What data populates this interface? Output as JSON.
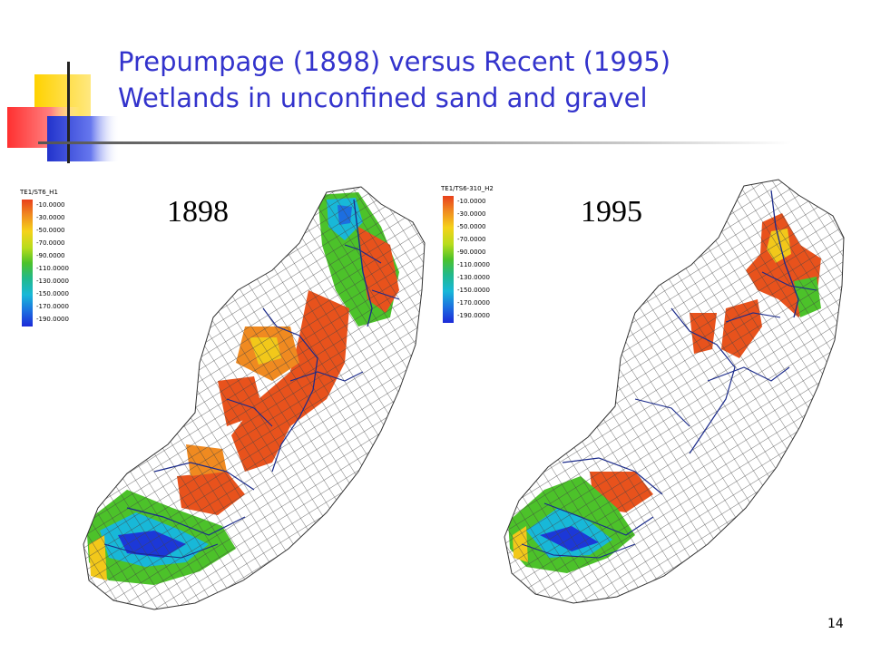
{
  "title": {
    "line1": "Prepumpage (1898) versus Recent (1995)",
    "line2": "Wetlands in unconfined sand and gravel"
  },
  "panels": [
    {
      "year": "1898",
      "legend_title": "TE1/ST6_H1",
      "legend_values": [
        "-10.0000",
        "-30.0000",
        "-50.0000",
        "-70.0000",
        "-90.0000",
        "-110.0000",
        "-130.0000",
        "-150.0000",
        "-170.0000",
        "-190.0000"
      ]
    },
    {
      "year": "1995",
      "legend_title": "TE1/TS6-310_H2",
      "legend_values": [
        "-10.0000",
        "-30.0000",
        "-50.0000",
        "-70.0000",
        "-90.0000",
        "-110.0000",
        "-130.0000",
        "-150.0000",
        "-170.0000",
        "-190.0000"
      ]
    }
  ],
  "page_number": "14",
  "colors": {
    "title": "#3333cc",
    "orange": "#e8521c",
    "yellow": "#f2c81a",
    "green": "#4cc22a",
    "cyan": "#18b8d8",
    "blue": "#1c38d8",
    "stream": "#1a2a8a"
  }
}
